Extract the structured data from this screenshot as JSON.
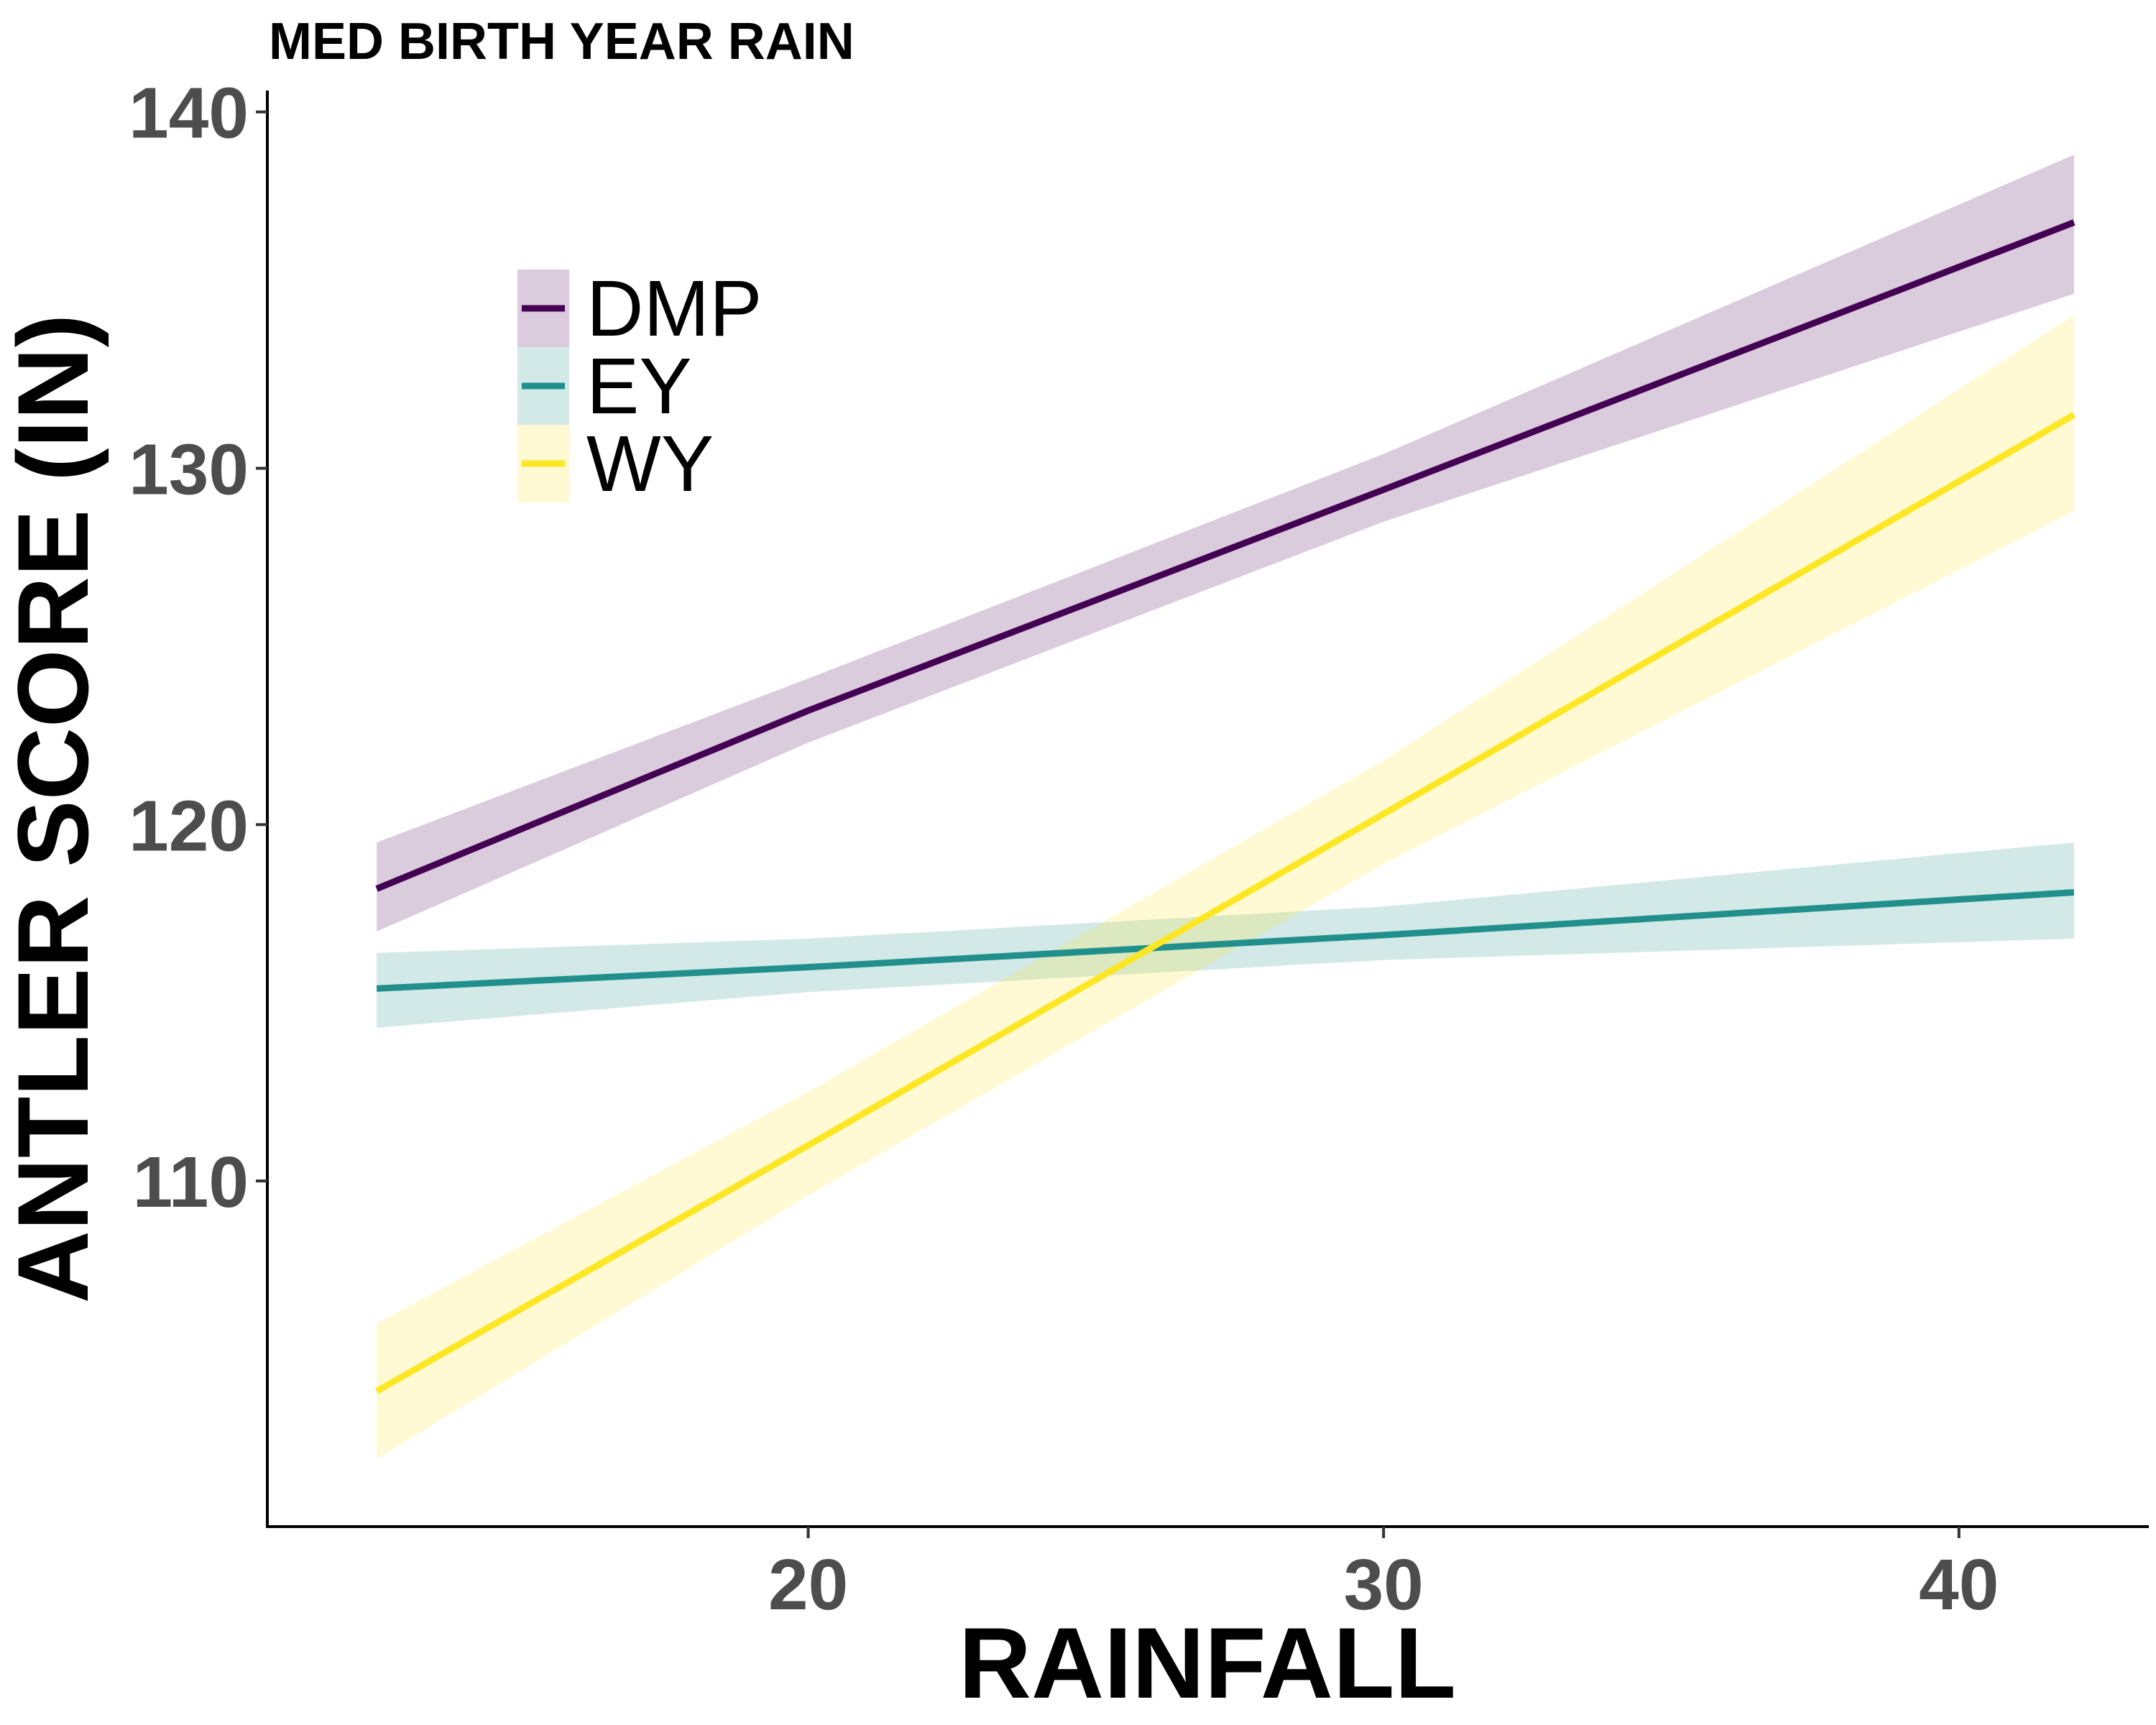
{
  "chart_data": {
    "type": "line",
    "title": "MED BIRTH YEAR RAIN",
    "xlabel": "RAINFALL",
    "ylabel": "ANTLER SCORE (IN)",
    "xlim": [
      10.6,
      43.3
    ],
    "ylim": [
      100.3,
      140.6
    ],
    "x_ticks": [
      20,
      30,
      40
    ],
    "y_ticks": [
      110,
      120,
      130,
      140
    ],
    "x_tick_labels": [
      "20",
      "30",
      "40"
    ],
    "y_tick_labels": [
      "110",
      "120",
      "130",
      "140"
    ],
    "grid": false,
    "legend": "top-left inside",
    "series": [
      {
        "name": "DMP",
        "color": "#440154",
        "band_color": "#440154",
        "x": [
          12.5,
          20,
          30,
          42
        ],
        "y": [
          118.2,
          123.2,
          129.4,
          136.9
        ],
        "lower": [
          117.0,
          122.3,
          128.5,
          134.9
        ],
        "upper": [
          119.5,
          124.1,
          130.4,
          138.8
        ]
      },
      {
        "name": "EY",
        "color": "#21908C",
        "band_color": "#21908C",
        "x": [
          12.5,
          20,
          30,
          42
        ],
        "y": [
          115.4,
          116.0,
          116.9,
          118.1
        ],
        "lower": [
          114.3,
          115.3,
          116.2,
          116.8
        ],
        "upper": [
          116.4,
          116.8,
          117.7,
          119.5
        ]
      },
      {
        "name": "WY",
        "color": "#FDE725",
        "band_color": "#FDE725",
        "x": [
          12.5,
          20,
          30,
          42
        ],
        "y": [
          104.1,
          111.0,
          120.3,
          131.5
        ],
        "lower": [
          102.2,
          109.6,
          118.9,
          128.8
        ],
        "upper": [
          106.0,
          112.5,
          121.8,
          134.3
        ]
      }
    ]
  }
}
